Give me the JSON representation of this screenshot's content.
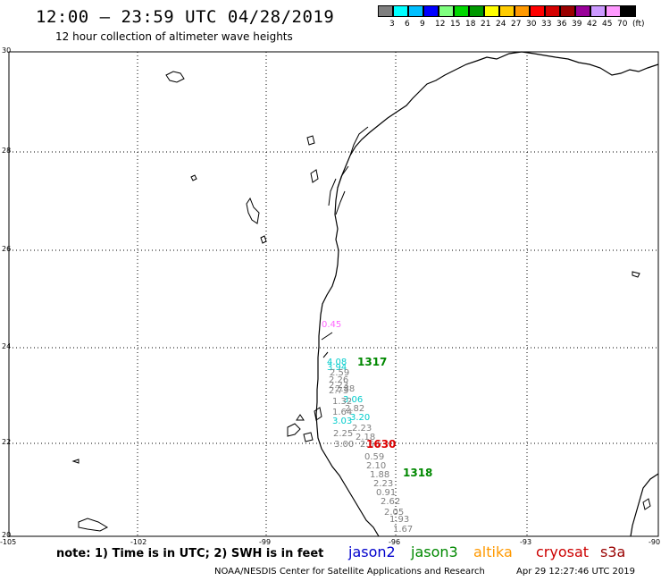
{
  "header": {
    "title": "12:00 – 23:59 UTC 04/28/2019",
    "subtitle": "12 hour collection of altimeter wave heights"
  },
  "legend": {
    "colors": [
      "#7f7f7f",
      "#00ffff",
      "#00bfff",
      "#0000ff",
      "#7fff7f",
      "#00d700",
      "#009900",
      "#ffff00",
      "#ffcc00",
      "#ff9900",
      "#ff0000",
      "#d40000",
      "#990000",
      "#990099",
      "#cc99ff",
      "#ff99ff",
      "#000000"
    ],
    "labels": [
      "3",
      "6",
      "9",
      "12",
      "15",
      "18",
      "21",
      "24",
      "27",
      "30",
      "33",
      "36",
      "39",
      "42",
      "45",
      "70",
      "(ft)"
    ]
  },
  "axes": {
    "y_ticks": [
      "30",
      "28",
      "26",
      "24",
      "22",
      "20"
    ],
    "x_ticks": [
      "-105",
      "-102",
      "-99",
      "-96",
      "-93",
      "-90"
    ]
  },
  "annotations": {
    "pass_times": [
      {
        "text": "1317",
        "color": "#008800"
      },
      {
        "text": "1318",
        "color": "#008800"
      },
      {
        "text": "1630",
        "color": "#dd0000"
      }
    ],
    "wave_labels": [
      {
        "text": "0.45",
        "color": "#ff66ff"
      },
      {
        "text": "4.08",
        "color": "#00cccc"
      },
      {
        "text": "3.94",
        "color": "#00cccc"
      },
      {
        "text": "2.59",
        "color": "#7f7f7f"
      },
      {
        "text": "2.26",
        "color": "#7f7f7f"
      },
      {
        "text": "2.23",
        "color": "#7f7f7f"
      },
      {
        "text": "2.88",
        "color": "#7f7f7f"
      },
      {
        "text": "2.73",
        "color": "#7f7f7f"
      },
      {
        "text": "3.06",
        "color": "#00cccc"
      },
      {
        "text": "1.32",
        "color": "#7f7f7f"
      },
      {
        "text": "2.82",
        "color": "#7f7f7f"
      },
      {
        "text": "1.64",
        "color": "#7f7f7f"
      },
      {
        "text": "3.20",
        "color": "#00cccc"
      },
      {
        "text": "3.03",
        "color": "#00cccc"
      },
      {
        "text": "2.23",
        "color": "#7f7f7f"
      },
      {
        "text": "2.25",
        "color": "#7f7f7f"
      },
      {
        "text": "2.18",
        "color": "#7f7f7f"
      },
      {
        "text": "3.00",
        "color": "#7f7f7f"
      },
      {
        "text": "2.60",
        "color": "#7f7f7f"
      },
      {
        "text": "0.59",
        "color": "#7f7f7f"
      },
      {
        "text": "2.10",
        "color": "#7f7f7f"
      },
      {
        "text": "1.88",
        "color": "#7f7f7f"
      },
      {
        "text": "2.23",
        "color": "#7f7f7f"
      },
      {
        "text": "0.91",
        "color": "#7f7f7f"
      },
      {
        "text": "2.62",
        "color": "#7f7f7f"
      },
      {
        "text": "2.05",
        "color": "#7f7f7f"
      },
      {
        "text": "1.93",
        "color": "#7f7f7f"
      },
      {
        "text": "1.67",
        "color": "#7f7f7f"
      }
    ]
  },
  "footer": {
    "note": "note: 1) Time is in UTC; 2) SWH is in feet",
    "satellites": [
      {
        "name": "jason2",
        "color": "#0000cc"
      },
      {
        "name": "jason3",
        "color": "#008800"
      },
      {
        "name": "altika",
        "color": "#ff9900"
      },
      {
        "name": "cryosat",
        "color": "#cc0000"
      },
      {
        "name": "s3a",
        "color": "#990000"
      }
    ],
    "credit": "NOAA/NESDIS Center for Satellite Applications and Research",
    "timestamp": "Apr 29 12:27:46 UTC 2019"
  }
}
